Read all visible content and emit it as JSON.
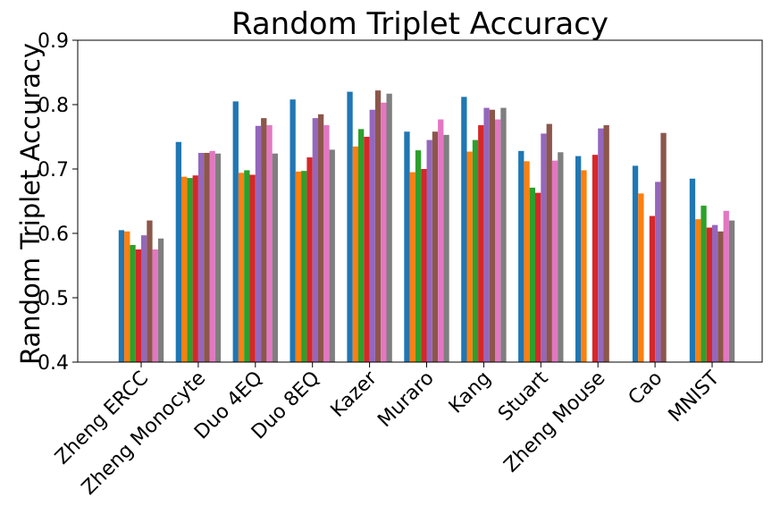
{
  "chart_data": {
    "type": "bar",
    "title": "Random Triplet Accuracy",
    "xlabel": "",
    "ylabel": "Random Triplet Accuracy",
    "ylim": [
      0.4,
      0.9
    ],
    "yticks": [
      "0.4",
      "0.5",
      "0.6",
      "0.7",
      "0.8",
      "0.9"
    ],
    "grid": false,
    "legend": "none",
    "categories": [
      "Zheng ERCC",
      "Zheng Monocyte",
      "Duo 4EQ",
      "Duo 8EQ",
      "Kazer",
      "Muraro",
      "Kang",
      "Stuart",
      "Zheng Mouse",
      "Cao",
      "MNIST"
    ],
    "series": [
      {
        "color": "#1f77b4",
        "values": [
          0.605,
          0.742,
          0.805,
          0.808,
          0.82,
          0.758,
          0.812,
          0.728,
          0.72,
          0.705,
          0.685
        ]
      },
      {
        "color": "#ff7f0e",
        "values": [
          0.603,
          0.688,
          0.694,
          0.696,
          0.735,
          0.695,
          0.727,
          0.712,
          0.698,
          0.662,
          0.622
        ]
      },
      {
        "color": "#2ca02c",
        "values": [
          0.582,
          0.686,
          0.698,
          0.697,
          0.762,
          0.729,
          0.745,
          0.671,
          null,
          null,
          0.643
        ]
      },
      {
        "color": "#d62728",
        "values": [
          0.575,
          0.69,
          0.691,
          0.718,
          0.75,
          0.7,
          0.768,
          0.663,
          0.722,
          0.627,
          0.609
        ]
      },
      {
        "color": "#9467bd",
        "values": [
          0.597,
          0.725,
          0.767,
          0.779,
          0.792,
          0.745,
          0.795,
          0.755,
          0.763,
          0.68,
          0.613
        ]
      },
      {
        "color": "#8c564b",
        "values": [
          0.62,
          0.725,
          0.779,
          0.785,
          0.822,
          0.758,
          0.792,
          0.77,
          0.768,
          0.756,
          0.603
        ]
      },
      {
        "color": "#e377c2",
        "values": [
          0.575,
          0.728,
          0.768,
          0.768,
          0.803,
          0.777,
          0.777,
          0.713,
          null,
          null,
          0.635
        ]
      },
      {
        "color": "#7f7f7f",
        "values": [
          0.592,
          0.724,
          0.724,
          0.73,
          0.817,
          0.753,
          0.795,
          0.726,
          null,
          null,
          0.62
        ]
      }
    ]
  }
}
